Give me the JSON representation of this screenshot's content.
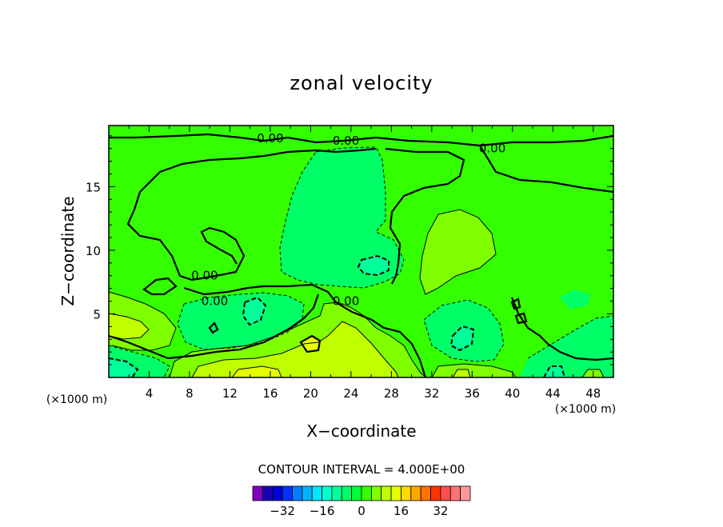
{
  "chart_data": {
    "type": "contour",
    "title": "zonal velocity",
    "xlabel": "X−coordinate",
    "ylabel": "Z−coordinate",
    "x_unit_note": "(×1000 m)",
    "y_unit_note": "(×1000 m)",
    "xlim": [
      0,
      50
    ],
    "ylim": [
      0,
      19.8
    ],
    "x_ticks": [
      4,
      8,
      12,
      16,
      20,
      24,
      28,
      32,
      36,
      40,
      44,
      48
    ],
    "y_ticks": [
      5,
      10,
      15
    ],
    "contour_interval_text": "CONTOUR INTERVAL = 4.000E+00",
    "contour_interval": 4,
    "contour_labels": [
      {
        "text": "0.00",
        "x": 16.0,
        "y": 18.8
      },
      {
        "text": "0.00",
        "x": 23.5,
        "y": 18.6
      },
      {
        "text": "0.00",
        "x": 38.0,
        "y": 18.0
      },
      {
        "text": "0.00",
        "x": 9.5,
        "y": 8.0
      },
      {
        "text": "0.00",
        "x": 10.5,
        "y": 6.0
      },
      {
        "text": "0.00",
        "x": 23.5,
        "y": 6.0
      }
    ],
    "colorbar": {
      "colors": [
        "#7f00bf",
        "#1a00b3",
        "#0000d9",
        "#0033ff",
        "#0080ff",
        "#00b3ff",
        "#00e6ff",
        "#00ffcc",
        "#00ff99",
        "#00ff66",
        "#00ff33",
        "#33ff00",
        "#80ff00",
        "#bfff00",
        "#e6ff00",
        "#ffd900",
        "#ffa600",
        "#ff7300",
        "#ff3300",
        "#ff4d4d",
        "#ff7373",
        "#ff9999"
      ],
      "tick_labels": [
        "−32",
        "−16",
        "0",
        "16",
        "32"
      ],
      "tick_values": [
        -32,
        -16,
        0,
        16,
        32
      ],
      "range": [
        -44,
        44
      ]
    },
    "fills": [
      {
        "level": 0,
        "color": "#33ff00"
      },
      {
        "level": -4,
        "color": "#00ff66"
      },
      {
        "level": -8,
        "color": "#00ff99"
      },
      {
        "level": -12,
        "color": "#00ffcc"
      },
      {
        "level": 4,
        "color": "#80ff00"
      },
      {
        "level": 8,
        "color": "#bfff00"
      },
      {
        "level": 12,
        "color": "#e6ff00"
      }
    ]
  }
}
